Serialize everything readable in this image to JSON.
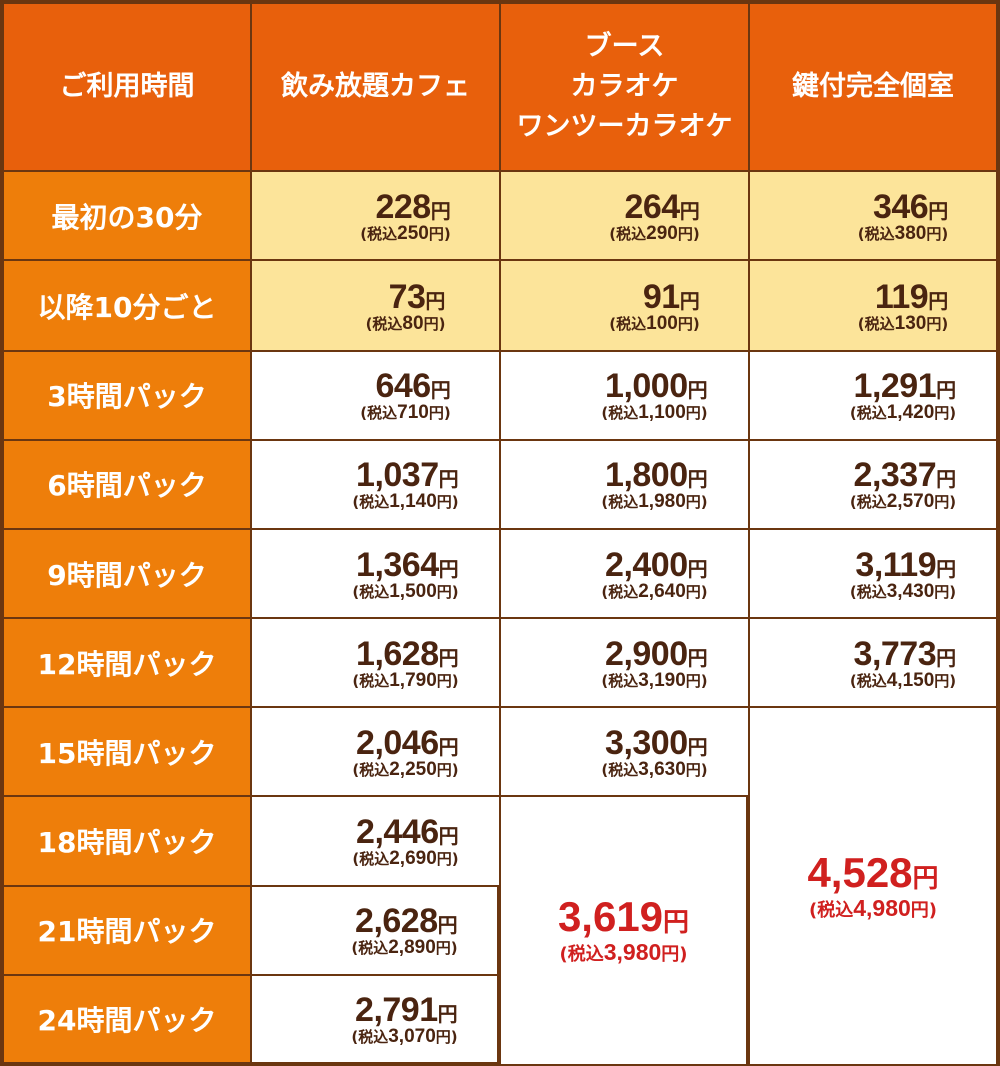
{
  "colors": {
    "header_bg": "#e8600c",
    "row_header_bg": "#ee7e0a",
    "highlight_row_bg": "#fce49a",
    "border": "#6b3610",
    "price_text": "#4a2410",
    "red_price": "#d0201f"
  },
  "header": {
    "time_label": "ご利用時間",
    "col1": "飲み放題カフェ",
    "col2_lines": [
      "ブース",
      "カラオケ",
      "ワンツーカラオケ"
    ],
    "col3": "鍵付完全個室"
  },
  "yen": "円",
  "tax_prefix": "(税込",
  "tax_suffix": "円)",
  "rows": [
    {
      "label": "最初の30分",
      "cafe": {
        "price": "228",
        "tax": "250"
      },
      "booth": {
        "price": "264",
        "tax": "290"
      },
      "room": {
        "price": "346",
        "tax": "380"
      }
    },
    {
      "label": "以降10分ごと",
      "cafe": {
        "price": "73",
        "tax": "80"
      },
      "booth": {
        "price": "91",
        "tax": "100"
      },
      "room": {
        "price": "119",
        "tax": "130"
      }
    },
    {
      "label": "3時間パック",
      "cafe": {
        "price": "646",
        "tax": "710"
      },
      "booth": {
        "price": "1,000",
        "tax": "1,100"
      },
      "room": {
        "price": "1,291",
        "tax": "1,420"
      }
    },
    {
      "label": "6時間パック",
      "cafe": {
        "price": "1,037",
        "tax": "1,140"
      },
      "booth": {
        "price": "1,800",
        "tax": "1,980"
      },
      "room": {
        "price": "2,337",
        "tax": "2,570"
      }
    },
    {
      "label": "9時間パック",
      "cafe": {
        "price": "1,364",
        "tax": "1,500"
      },
      "booth": {
        "price": "2,400",
        "tax": "2,640"
      },
      "room": {
        "price": "3,119",
        "tax": "3,430"
      }
    },
    {
      "label": "12時間パック",
      "cafe": {
        "price": "1,628",
        "tax": "1,790"
      },
      "booth": {
        "price": "2,900",
        "tax": "3,190"
      },
      "room": {
        "price": "3,773",
        "tax": "4,150"
      }
    },
    {
      "label": "15時間パック",
      "cafe": {
        "price": "2,046",
        "tax": "2,250"
      },
      "booth": {
        "price": "3,300",
        "tax": "3,630"
      }
    },
    {
      "label": "18時間パック",
      "cafe": {
        "price": "2,446",
        "tax": "2,690"
      }
    },
    {
      "label": "21時間パック",
      "cafe": {
        "price": "2,628",
        "tax": "2,890"
      }
    },
    {
      "label": "24時間パック",
      "cafe": {
        "price": "2,791",
        "tax": "3,070"
      }
    }
  ],
  "booth_long": {
    "price": "3,619",
    "tax": "3,980"
  },
  "room_long": {
    "price": "4,528",
    "tax": "4,980"
  }
}
